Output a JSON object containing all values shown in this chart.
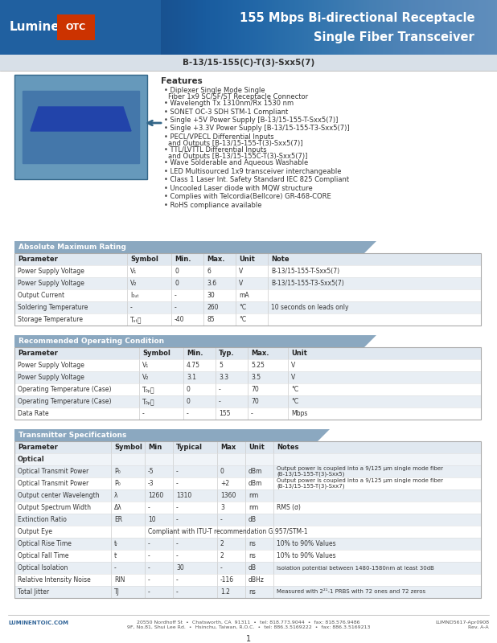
{
  "title_line1": "155 Mbps Bi-directional Receptacle",
  "title_line2": "Single Fiber Transceiver",
  "model": "B-13/15-155(C)-T(3)-Sxx5(7)",
  "header_bg": "#2060a0",
  "header_text_color": "#ffffff",
  "features": [
    "Diplexer Single Mode Single Fiber 1x9 SC/SF/ST Receptacle Connector",
    "Wavelength Tx 1310nm/Rx 1530 nm",
    "SONET OC-3 SDH STM-1 Compliant",
    "Single +5V Power Supply [B-13/15-155-T-Sxx5(7)]",
    "Single +3.3V Power Supply [B-13/15-155-T3-Sxx5(7)]",
    "PECL/VPECL Differential Inputs and Outputs [B-13/15-155-T(3)-Sxx5(7)]",
    "TTL/LVTTL Differential Inputs and Outputs [B-13/15-155C-T(3)-Sxx5(7)]",
    "Wave Solderable and Aqueous Washable",
    "LED Multisourced 1x9 transceiver interchangeable",
    "Class 1 Laser Int. Safety Standard IEC 825 Compliant",
    "Uncooled Laser diode with MQW structure",
    "Complies with Telcordia(Bellcore) GR-468-CORE",
    "RoHS compliance available"
  ],
  "abs_max_title": "Absolute Maximum Rating",
  "abs_max_headers": [
    "Parameter",
    "Symbol",
    "Min.",
    "Max.",
    "Unit",
    "Note"
  ],
  "abs_max_rows": [
    [
      "Power Supply Voltage",
      "V₁",
      "0",
      "6",
      "V",
      "B-13/15-155-T-Sxx5(7)"
    ],
    [
      "Power Supply Voltage",
      "V₂",
      "0",
      "3.6",
      "V",
      "B-13/15-155-T3-Sxx5(7)"
    ],
    [
      "Output Current",
      "I₀ᵤₜ",
      "-",
      "30",
      "mA",
      ""
    ],
    [
      "Soldering Temperature",
      "-",
      "-",
      "260",
      "°C",
      "10 seconds on leads only"
    ],
    [
      "Storage Temperature",
      "Tₛₜᵲ",
      "-40",
      "85",
      "°C",
      ""
    ]
  ],
  "rec_op_title": "Recommended Operating Condition",
  "rec_op_headers": [
    "Parameter",
    "Symbol",
    "Min.",
    "Typ.",
    "Max.",
    "Unit"
  ],
  "rec_op_rows": [
    [
      "Power Supply Voltage",
      "V₁",
      "4.75",
      "5",
      "5.25",
      "V"
    ],
    [
      "Power Supply Voltage",
      "V₂",
      "3.1",
      "3.3",
      "3.5",
      "V"
    ],
    [
      "Operating Temperature (Case)",
      "T₀ₚᵲ",
      "0",
      "-",
      "70",
      "°C"
    ],
    [
      "Operating Temperature (Case)",
      "T₀ₚᵲ",
      "0",
      "-",
      "70",
      "°C"
    ],
    [
      "Data Rate",
      "-",
      "-",
      "155",
      "-",
      "Mbps"
    ]
  ],
  "tx_spec_title": "Transmitter Specifications",
  "tx_spec_headers": [
    "Parameter",
    "Symbol",
    "Min",
    "Typical",
    "Max",
    "Unit",
    "Notes"
  ],
  "tx_spec_subheader": "Optical",
  "tx_spec_rows": [
    [
      "Optical Transmit Power",
      "P₀",
      "-5",
      "-",
      "0",
      "dBm",
      "Output power is coupled into a 9/125 μm single mode fiber (B-13/15-155-T(3)-Sxx5)"
    ],
    [
      "Optical Transmit Power",
      "P₀",
      "-3",
      "-",
      "+2",
      "dBm",
      "Output power is coupled into a 9/125 μm single mode fiber (B-13/15-155-T(3)-Sxx7)"
    ],
    [
      "Output center Wavelength",
      "λ",
      "1260",
      "1310",
      "1360",
      "nm",
      ""
    ],
    [
      "Output Spectrum Width",
      "Δλ",
      "-",
      "-",
      "3",
      "nm",
      "RMS (σ)"
    ],
    [
      "Extinction Ratio",
      "ER",
      "10",
      "-",
      "-",
      "dB",
      ""
    ],
    [
      "Output Eye",
      "",
      "Compliant with ITU-T recommendation G.957/STM-1",
      "",
      "",
      "",
      ""
    ],
    [
      "Optical Rise Time",
      "tᵣ",
      "-",
      "-",
      "2",
      "ns",
      "10% to 90% Values"
    ],
    [
      "Optical Fall Time",
      "tⁱ",
      "-",
      "-",
      "2",
      "ns",
      "10% to 90% Values"
    ],
    [
      "Optical Isolation",
      "-",
      "-",
      "30",
      "-",
      "dB",
      "Isolation potential between 1480-1580nm at least 30dB"
    ],
    [
      "Relative Intensity Noise",
      "RIN",
      "-",
      "-",
      "-116",
      "dBHz",
      ""
    ],
    [
      "Total Jitter",
      "TJ",
      "-",
      "-",
      "1.2",
      "ns",
      "Measured with 2²¹-1 PRBS with 72 ones and 72 zeros"
    ]
  ],
  "footer_left": "LUMINENTOIC.COM",
  "footer_center": "20550 Nordhoff St  •  Chatsworth, CA  91311  •  tel: 818.773.9044  •  fax: 818.576.9486\n9F, No.81, Shui Lee Rd.  •  Hsinchu, Taiwan, R.O.C.  •  tel: 886.3.5169222  •  fax: 886.3.5169213",
  "footer_right": "LUMND5617-Apr0908\nRev. A-A",
  "page_num": "1",
  "table_header_bg": "#8ba8c0",
  "table_header_text": "#ffffff",
  "table_alt_row": "#e8eef4",
  "table_normal_row": "#ffffff",
  "section_header_bg": "#8ba8c0",
  "section_header_text": "#ffffff"
}
